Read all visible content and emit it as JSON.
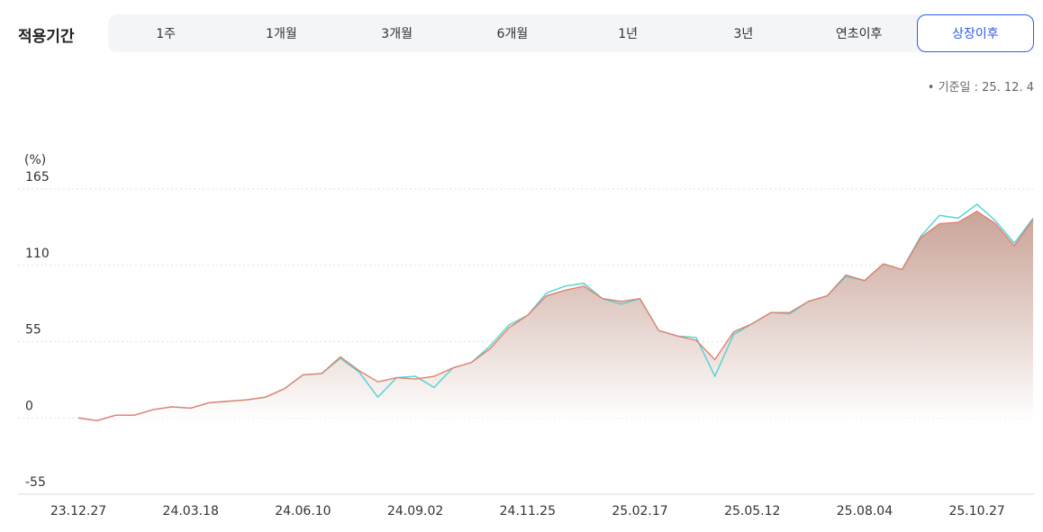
{
  "filter": {
    "label": "적용기간",
    "options": [
      "1주",
      "1개월",
      "3개월",
      "6개월",
      "1년",
      "3년",
      "연초이후",
      "상장이후"
    ],
    "selected": 7
  },
  "as_of": "기준일 : 25. 12. 4",
  "chart_data": {
    "type": "line",
    "y_unit": "(%)",
    "categories": [
      "23.12.27",
      null,
      null,
      null,
      null,
      null,
      "24.03.18",
      null,
      null,
      null,
      null,
      null,
      "24.06.10",
      null,
      null,
      null,
      null,
      null,
      "24.09.02",
      null,
      null,
      null,
      null,
      null,
      "24.11.25",
      null,
      null,
      null,
      null,
      null,
      "25.02.17",
      null,
      null,
      null,
      null,
      null,
      "25.05.12",
      null,
      null,
      null,
      null,
      null,
      "25.08.04",
      null,
      null,
      null,
      null,
      null,
      "25.10.27",
      null,
      null,
      null
    ],
    "series": [
      {
        "color": "#e5806f",
        "values": [
          0,
          -2,
          2,
          2,
          6,
          8,
          7,
          11,
          12,
          13,
          15,
          21,
          31,
          32,
          44,
          34,
          26,
          29,
          28,
          30,
          36,
          40,
          50,
          65,
          74,
          88,
          92,
          95,
          86,
          84,
          86,
          63,
          59,
          56,
          42,
          62,
          68,
          76,
          76,
          84,
          88,
          103,
          99,
          111,
          107,
          130,
          140,
          141,
          149,
          140,
          124,
          143
        ]
      },
      {
        "color": "#4fd3d3",
        "values": [
          0,
          -2,
          2,
          2,
          6,
          8,
          7,
          11,
          12,
          13,
          15,
          21,
          31,
          32,
          43,
          33,
          15,
          29,
          30,
          22,
          36,
          40,
          52,
          67,
          74,
          90,
          95,
          97,
          86,
          82,
          86,
          63,
          59,
          58,
          30,
          60,
          68,
          76,
          75,
          84,
          88,
          102,
          99,
          111,
          107,
          131,
          146,
          144,
          154,
          142,
          126,
          144
        ]
      }
    ],
    "ylim": [
      -55,
      165
    ],
    "yticks": [
      -55,
      0,
      55,
      110,
      165
    ],
    "grid": true,
    "area": true
  }
}
